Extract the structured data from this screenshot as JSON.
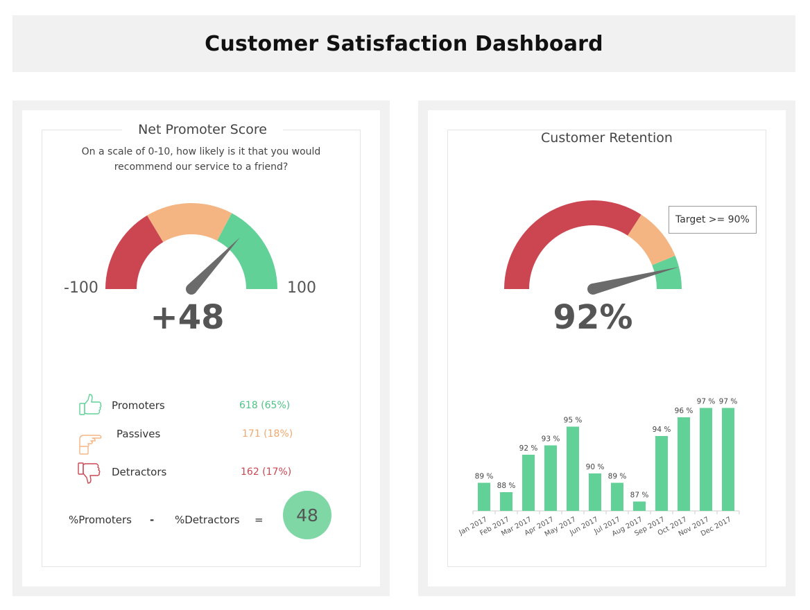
{
  "header": {
    "title": "Customer Satisfaction Dashboard"
  },
  "colors": {
    "red": "#cc4652",
    "orange": "#f5b583",
    "green": "#62d198",
    "needle": "#6b6b6b"
  },
  "nps": {
    "title": "Net Promoter Score",
    "question": "On a scale of 0-10, how likely is it that you would recommend our service to a friend?",
    "min_label": "-100",
    "max_label": "100",
    "score": 48,
    "score_label": "+48",
    "legend": [
      {
        "label": "Promoters",
        "value": "618 (65%)",
        "icon": "thumbs-up-icon",
        "color": "#62d198"
      },
      {
        "label": "Passives",
        "value": "171 (18%)",
        "icon": "thumb-sideways-icon",
        "color": "#f5b583"
      },
      {
        "label": "Detractors",
        "value": "162 (17%)",
        "icon": "thumbs-down-icon",
        "color": "#cc4652"
      }
    ],
    "formula": {
      "left": "%Promoters",
      "minus": "-",
      "right": "%Detractors",
      "equals": "=",
      "result": "48"
    }
  },
  "retention": {
    "title": "Customer Retention",
    "value": 92,
    "value_label": "92%",
    "target_label": "Target >=  90%"
  },
  "chart_data": {
    "type": "bar",
    "title": "",
    "categories": [
      "Jan 2017",
      "Feb 2017",
      "Mar 2017",
      "Apr 2017",
      "May 2017",
      "Jun 2017",
      "Jul 2017",
      "Aug 2017",
      "Sep 2017",
      "Oct 2017",
      "Nov 2017",
      "Dec 2017"
    ],
    "values": [
      89,
      88,
      92,
      93,
      95,
      90,
      89,
      87,
      94,
      96,
      97,
      97
    ],
    "data_labels": [
      "89 %",
      "88 %",
      "92 %",
      "93 %",
      "95 %",
      "90 %",
      "89 %",
      "87 %",
      "94 %",
      "96 %",
      "97 %",
      "97 %"
    ],
    "xlabel": "",
    "ylabel": "",
    "ylim": [
      85,
      97
    ],
    "grid": false,
    "color": "#62d198"
  }
}
